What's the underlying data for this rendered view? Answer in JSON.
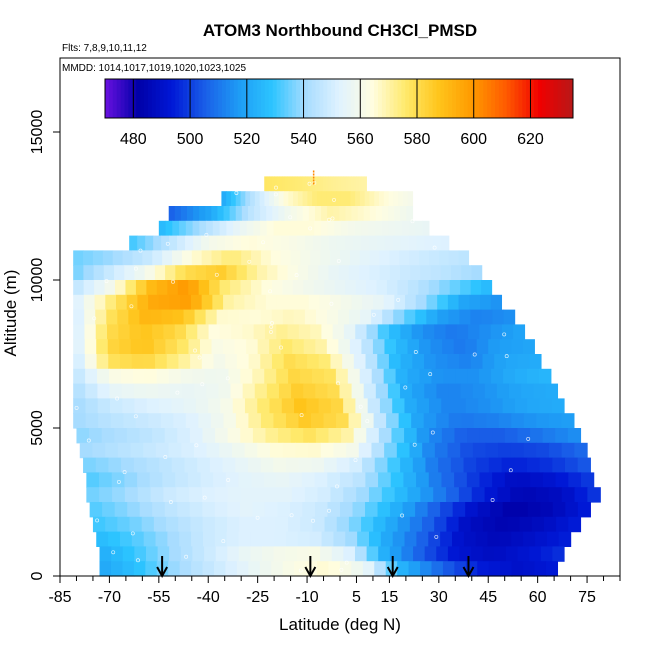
{
  "chart_data": {
    "type": "heatmap",
    "title": "ATOM3 Northbound CH3Cl_PMSD",
    "flights_label": "Flts: 7,8,9,10,11,12",
    "dates_label": "MMDD: 1014,1017,1019,1020,1023,1025",
    "xlabel": "Latitude (deg N)",
    "ylabel": "Altitude (m)",
    "xlim": [
      -85,
      85
    ],
    "ylim": [
      0,
      17500
    ],
    "x_ticks": [
      -85,
      -70,
      -55,
      -40,
      -25,
      -10,
      5,
      15,
      30,
      45,
      60,
      75
    ],
    "x_minor_ticks": [
      -80,
      -75,
      -65,
      -60,
      -50,
      -45,
      -35,
      -30,
      -20,
      -15,
      -5,
      0,
      10,
      20,
      25,
      35,
      40,
      50,
      55,
      65,
      70,
      80,
      85
    ],
    "y_ticks": [
      0,
      5000,
      10000,
      15000
    ],
    "colorbar": {
      "range": [
        470,
        635
      ],
      "ticks": [
        480,
        500,
        520,
        540,
        560,
        580,
        600,
        620
      ],
      "colors": [
        "#6a11e0",
        "#0000a8",
        "#0018d6",
        "#1a5fe8",
        "#1e9cf5",
        "#2cc4ff",
        "#a7dcff",
        "#dff2ff",
        "#fffde0",
        "#ffe96a",
        "#ffc41a",
        "#ff9900",
        "#ff5a00",
        "#f00000",
        "#b81818"
      ]
    },
    "arrows_latitude": [
      -54,
      -9,
      16,
      39
    ],
    "field": [
      {
        "alt": 13000,
        "lat_min": -23,
        "lat_max": 8,
        "values": [
          577,
          575,
          572,
          570
        ]
      },
      {
        "alt": 12500,
        "lat_min": -36,
        "lat_max": 22,
        "values": [
          520,
          545,
          565,
          575,
          575,
          566,
          560
        ]
      },
      {
        "alt": 12000,
        "lat_min": -52,
        "lat_max": 22,
        "values": [
          505,
          520,
          545,
          560,
          570,
          565,
          558
        ]
      },
      {
        "alt": 11500,
        "lat_min": -55,
        "lat_max": 27,
        "values": [
          525,
          540,
          555,
          565,
          565,
          560,
          558,
          556
        ]
      },
      {
        "alt": 11000,
        "lat_min": -64,
        "lat_max": 33,
        "values": [
          530,
          545,
          560,
          565,
          562,
          558,
          556,
          554,
          552
        ]
      },
      {
        "alt": 10500,
        "lat_min": -81,
        "lat_max": 39,
        "values": [
          535,
          540,
          548,
          565,
          575,
          565,
          560,
          556,
          552,
          548,
          545
        ]
      },
      {
        "alt": 10000,
        "lat_min": -81,
        "lat_max": 43,
        "values": [
          535,
          548,
          560,
          580,
          585,
          570,
          562,
          556,
          552,
          548,
          545,
          540
        ]
      },
      {
        "alt": 9500,
        "lat_min": -81,
        "lat_max": 46,
        "values": [
          545,
          560,
          590,
          600,
          575,
          565,
          560,
          556,
          552,
          545,
          535,
          525
        ]
      },
      {
        "alt": 9000,
        "lat_min": -81,
        "lat_max": 49,
        "values": [
          550,
          575,
          595,
          598,
          570,
          565,
          565,
          560,
          555,
          540,
          520,
          515
        ]
      },
      {
        "alt": 8500,
        "lat_min": -81,
        "lat_max": 53,
        "values": [
          548,
          578,
          592,
          588,
          566,
          565,
          568,
          562,
          555,
          535,
          518,
          512,
          515
        ]
      },
      {
        "alt": 8000,
        "lat_min": -81,
        "lat_max": 56,
        "values": [
          548,
          580,
          588,
          582,
          564,
          566,
          572,
          568,
          555,
          530,
          515,
          510,
          515,
          520
        ]
      },
      {
        "alt": 7500,
        "lat_min": -81,
        "lat_max": 59,
        "values": [
          548,
          582,
          588,
          578,
          562,
          565,
          576,
          570,
          552,
          528,
          515,
          510,
          518,
          520
        ]
      },
      {
        "alt": 7000,
        "lat_min": -81,
        "lat_max": 61,
        "values": [
          546,
          578,
          582,
          572,
          560,
          566,
          580,
          575,
          552,
          525,
          515,
          512,
          520,
          522
        ]
      },
      {
        "alt": 6500,
        "lat_min": -81,
        "lat_max": 64,
        "values": [
          545,
          562,
          565,
          560,
          558,
          568,
          582,
          578,
          550,
          522,
          515,
          515,
          522,
          525
        ]
      },
      {
        "alt": 6000,
        "lat_min": -81,
        "lat_max": 66,
        "values": [
          542,
          555,
          558,
          556,
          558,
          572,
          585,
          580,
          548,
          520,
          512,
          515,
          520,
          522
        ]
      },
      {
        "alt": 5500,
        "lat_min": -81,
        "lat_max": 68,
        "values": [
          540,
          548,
          552,
          555,
          560,
          575,
          588,
          582,
          546,
          520,
          512,
          515,
          520,
          522
        ]
      },
      {
        "alt": 5000,
        "lat_min": -81,
        "lat_max": 71,
        "values": [
          540,
          545,
          548,
          552,
          560,
          575,
          586,
          580,
          545,
          518,
          510,
          512,
          516,
          518
        ]
      },
      {
        "alt": 4500,
        "lat_min": -80,
        "lat_max": 73,
        "values": [
          538,
          542,
          546,
          552,
          562,
          572,
          578,
          570,
          540,
          515,
          505,
          505,
          510,
          515
        ]
      },
      {
        "alt": 4000,
        "lat_min": -79,
        "lat_max": 75,
        "values": [
          540,
          544,
          548,
          552,
          558,
          565,
          566,
          560,
          535,
          512,
          502,
          500,
          502,
          508
        ]
      },
      {
        "alt": 3500,
        "lat_min": -78,
        "lat_max": 76,
        "values": [
          536,
          540,
          545,
          550,
          555,
          560,
          558,
          550,
          530,
          510,
          500,
          495,
          498,
          505
        ]
      },
      {
        "alt": 3000,
        "lat_min": -77,
        "lat_max": 77,
        "values": [
          532,
          538,
          545,
          550,
          554,
          556,
          552,
          545,
          528,
          510,
          498,
          488,
          492,
          500
        ]
      },
      {
        "alt": 2500,
        "lat_min": -77,
        "lat_max": 79,
        "values": [
          535,
          540,
          548,
          552,
          554,
          554,
          550,
          540,
          525,
          510,
          495,
          485,
          488,
          500
        ]
      },
      {
        "alt": 2000,
        "lat_min": -76,
        "lat_max": 76,
        "values": [
          532,
          538,
          545,
          550,
          554,
          552,
          548,
          538,
          522,
          505,
          490,
          482,
          486,
          495
        ]
      },
      {
        "alt": 1500,
        "lat_min": -75,
        "lat_max": 73,
        "values": [
          530,
          535,
          542,
          548,
          552,
          552,
          548,
          536,
          520,
          505,
          488,
          484,
          488,
          495
        ]
      },
      {
        "alt": 1000,
        "lat_min": -74,
        "lat_max": 70,
        "values": [
          526,
          532,
          540,
          548,
          552,
          552,
          550,
          540,
          520,
          505,
          490,
          486,
          490,
          495
        ]
      },
      {
        "alt": 500,
        "lat_min": -73,
        "lat_max": 68,
        "values": [
          522,
          530,
          540,
          548,
          556,
          560,
          562,
          552,
          522,
          505,
          492,
          488,
          492,
          498
        ]
      },
      {
        "alt": 0,
        "lat_min": -73,
        "lat_max": 66,
        "values": [
          520,
          528,
          540,
          548,
          556,
          562,
          566,
          556,
          522,
          506,
          494,
          490,
          494
        ]
      }
    ]
  }
}
